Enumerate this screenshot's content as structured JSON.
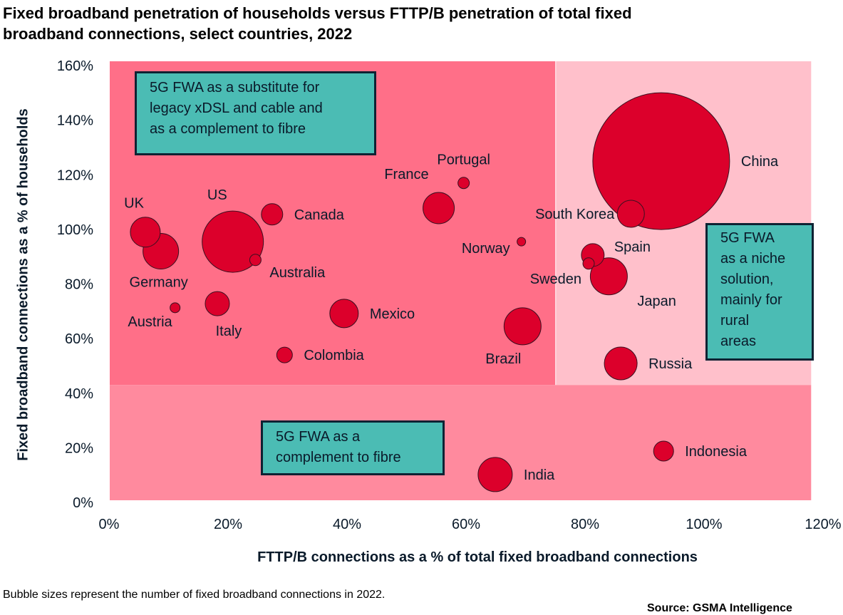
{
  "chart_data": {
    "type": "scatter",
    "subtype": "bubble",
    "title": "Fixed broadband penetration of households versus FTTP/B penetration of total fixed broadband connections, select countries, 2022",
    "xlabel": "FTTP/B connections as a % of total fixed broadband connections",
    "ylabel": "Fixed broadband connections as a % of households",
    "xlim": [
      0,
      120
    ],
    "ylim": [
      0,
      160
    ],
    "x_ticks": [
      "0%",
      "20%",
      "40%",
      "60%",
      "80%",
      "100%",
      "120%"
    ],
    "y_ticks": [
      "0%",
      "20%",
      "40%",
      "60%",
      "80%",
      "100%",
      "120%",
      "140%",
      "160%"
    ],
    "x_tick_values": [
      0,
      20,
      40,
      60,
      80,
      100,
      120
    ],
    "y_tick_values": [
      0,
      20,
      40,
      60,
      80,
      100,
      120,
      140,
      160
    ],
    "grid": false,
    "legend": "none",
    "size_note": "Bubble sizes represent the number of fixed broadband connections in 2022.",
    "bubble_color": "#dc002b",
    "regions": [
      {
        "name": "substitute",
        "x_range": [
          0,
          75
        ],
        "y_range": [
          43,
          160
        ],
        "color": "#ff6f88"
      },
      {
        "name": "niche",
        "x_range": [
          75,
          118
        ],
        "y_range": [
          43,
          160
        ],
        "color": "#ffc0cb"
      },
      {
        "name": "complement",
        "x_range": [
          0,
          118
        ],
        "y_range": [
          0,
          43
        ],
        "color": "#ff8a9e"
      }
    ],
    "points": [
      {
        "label": "China",
        "x": 92.8,
        "y": 125,
        "size": 96,
        "label_pos": "right"
      },
      {
        "label": "US",
        "x": 20.8,
        "y": 95.5,
        "size": 43,
        "label_pos": "top-left"
      },
      {
        "label": "UK",
        "x": 6.1,
        "y": 99,
        "size": 21,
        "label_pos": "top-left"
      },
      {
        "label": "Germany",
        "x": 8.7,
        "y": 92,
        "size": 25,
        "label_pos": "bottom"
      },
      {
        "label": "Canada",
        "x": 27.4,
        "y": 105.5,
        "size": 15,
        "label_pos": "right"
      },
      {
        "label": "Australia",
        "x": 24.6,
        "y": 88.8,
        "size": 8,
        "label_pos": "bottom-right"
      },
      {
        "label": "Austria",
        "x": 11.1,
        "y": 71.3,
        "size": 7,
        "label_pos": "bottom-left"
      },
      {
        "label": "Italy",
        "x": 18.2,
        "y": 72.8,
        "size": 17,
        "label_pos": "bottom"
      },
      {
        "label": "Colombia",
        "x": 29.5,
        "y": 54,
        "size": 11,
        "label_pos": "right"
      },
      {
        "label": "Mexico",
        "x": 39.5,
        "y": 69.2,
        "size": 20,
        "label_pos": "right"
      },
      {
        "label": "France",
        "x": 55.4,
        "y": 107.8,
        "size": 22,
        "label_pos": "top-left"
      },
      {
        "label": "Portugal",
        "x": 59.6,
        "y": 117,
        "size": 8,
        "label_pos": "top"
      },
      {
        "label": "Norway",
        "x": 69.3,
        "y": 95.5,
        "size": 6,
        "label_pos": "bottom-left"
      },
      {
        "label": "Brazil",
        "x": 69.5,
        "y": 64.5,
        "size": 26,
        "label_pos": "bottom-left"
      },
      {
        "label": "South Korea",
        "x": 87.7,
        "y": 105.7,
        "size": 19,
        "label_pos": "left"
      },
      {
        "label": "Spain",
        "x": 81.3,
        "y": 90.6,
        "size": 16,
        "label_pos": "top-right"
      },
      {
        "label": "Sweden",
        "x": 80.6,
        "y": 87.5,
        "size": 8,
        "label_pos": "bottom-left"
      },
      {
        "label": "Japan",
        "x": 84,
        "y": 82.8,
        "size": 26,
        "label_pos": "bottom-right"
      },
      {
        "label": "Russia",
        "x": 86,
        "y": 50.9,
        "size": 23,
        "label_pos": "right"
      },
      {
        "label": "India",
        "x": 64.9,
        "y": 10.2,
        "size": 24,
        "label_pos": "right"
      },
      {
        "label": "Indonesia",
        "x": 93.2,
        "y": 18.8,
        "size": 14,
        "label_pos": "right"
      }
    ],
    "annotations": [
      {
        "id": "substitute",
        "text": "5G FWA as a substitute for legacy xDSL and cable and as a complement to fibre"
      },
      {
        "id": "niche",
        "text": "5G FWA as a niche solution, mainly for rural areas"
      },
      {
        "id": "complement",
        "text": "5G FWA as a complement to fibre"
      }
    ]
  },
  "page": {
    "title_line1": "Fixed broadband penetration of households versus FTTP/B penetration of total fixed",
    "title_line2": "broadband connections, select countries, 2022",
    "note": "Bubble sizes represent the number of fixed broadband connections in 2022.",
    "source": "Source: GSMA Intelligence"
  },
  "callouts": {
    "substitute": [
      "5G FWA as a substitute for",
      "legacy xDSL and cable and",
      "as a complement to fibre"
    ],
    "niche": [
      "5G FWA",
      "as a niche",
      "solution,",
      "mainly for",
      "rural",
      "areas"
    ],
    "complement": [
      "5G FWA as a",
      "complement to fibre"
    ]
  }
}
